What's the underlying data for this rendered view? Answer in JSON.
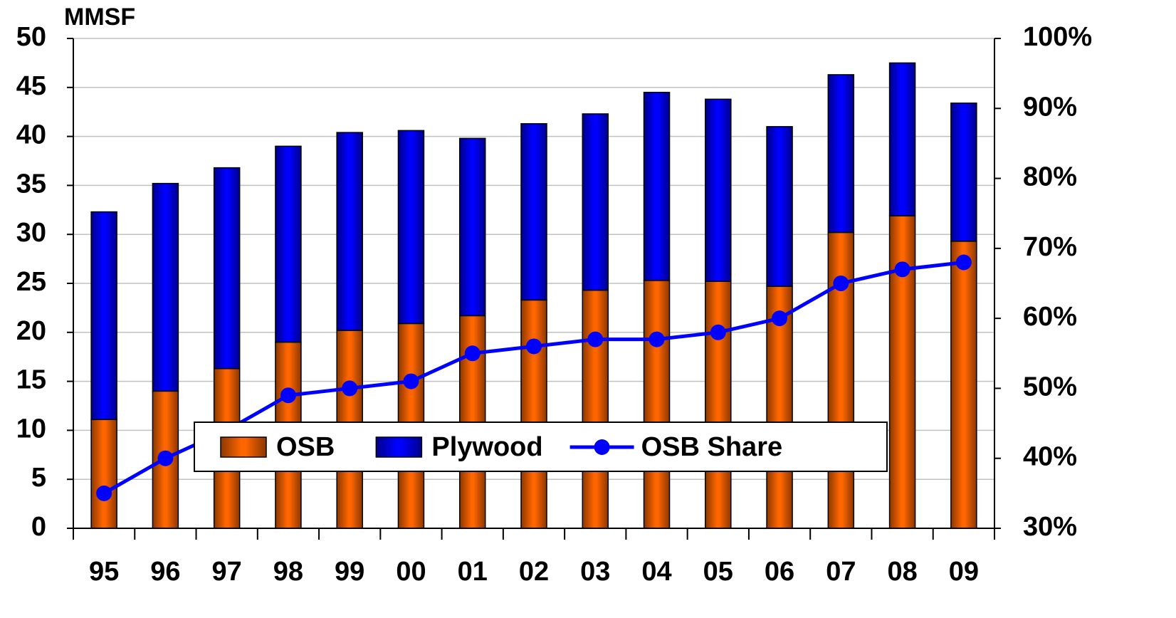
{
  "chart_data": {
    "type": "bar-line",
    "y_axis_label": "MMSF",
    "categories": [
      "95",
      "96",
      "97",
      "98",
      "99",
      "00",
      "01",
      "02",
      "03",
      "04",
      "05",
      "06",
      "07",
      "08",
      "09"
    ],
    "series": [
      {
        "name": "OSB",
        "type": "bar",
        "color": "#ff6600",
        "values": [
          11.1,
          14.0,
          16.3,
          19.0,
          20.2,
          20.9,
          21.7,
          23.3,
          24.3,
          25.3,
          25.2,
          24.7,
          30.2,
          31.9,
          29.3
        ]
      },
      {
        "name": "Plywood",
        "type": "bar",
        "color": "#0000ff",
        "values": [
          21.2,
          21.2,
          20.5,
          20.0,
          20.2,
          19.7,
          18.1,
          18.0,
          18.0,
          19.2,
          18.6,
          16.3,
          16.1,
          15.6,
          14.1
        ]
      },
      {
        "name": "OSB Share",
        "type": "line",
        "axis": "y2",
        "color": "#0000ff",
        "values": [
          35,
          40,
          44,
          49,
          50,
          51,
          55,
          56,
          57,
          57,
          58,
          60,
          65,
          67,
          68
        ]
      }
    ],
    "stacked": true,
    "ylim": [
      0,
      50
    ],
    "yticks": [
      0,
      5,
      10,
      15,
      20,
      25,
      30,
      35,
      40,
      45,
      50
    ],
    "y2lim": [
      30,
      100
    ],
    "y2ticks": [
      {
        "value": 30,
        "label": "30%"
      },
      {
        "value": 40,
        "label": "40%"
      },
      {
        "value": 50,
        "label": "50%"
      },
      {
        "value": 60,
        "label": "60%"
      },
      {
        "value": 70,
        "label": "70%"
      },
      {
        "value": 80,
        "label": "80%"
      },
      {
        "value": 90,
        "label": "90%"
      },
      {
        "value": 100,
        "label": "100%"
      }
    ],
    "grid": true
  }
}
